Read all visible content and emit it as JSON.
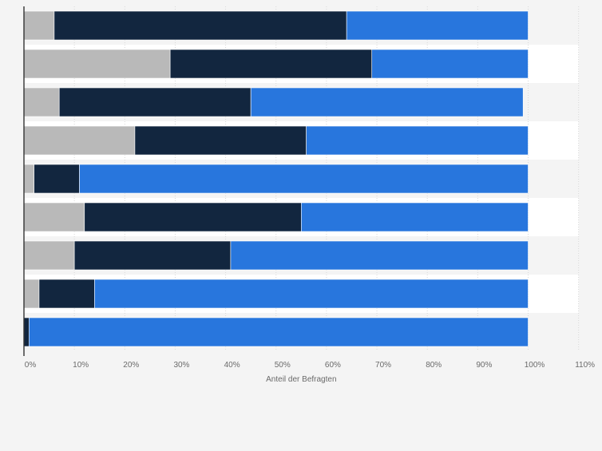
{
  "colors": {
    "series_1": "#b9b9b9",
    "series_2": "#12263f",
    "series_3": "#2876dd",
    "row_band_light": "#f4f4f4",
    "row_band_white": "#ffffff",
    "gridline": "#d9d9d9",
    "axis": "#333333",
    "tick_text": "#6a6a6a"
  },
  "chart_data": {
    "type": "bar",
    "orientation": "horizontal",
    "stacked": true,
    "xlabel": "Anteil der Befragten",
    "xlim": [
      0,
      110
    ],
    "x_ticks": [
      "0%",
      "10%",
      "20%",
      "30%",
      "40%",
      "50%",
      "60%",
      "70%",
      "80%",
      "90%",
      "100%",
      "110%"
    ],
    "grid": true,
    "legend": "none",
    "categories": [
      "",
      "",
      "",
      "",
      "",
      "",
      "",
      "",
      ""
    ],
    "series": [
      {
        "values": [
          6,
          29,
          7,
          22,
          2,
          12,
          10,
          3,
          0
        ]
      },
      {
        "values": [
          58,
          40,
          38,
          34,
          9,
          43,
          31,
          11,
          1
        ]
      },
      {
        "values": [
          36,
          31,
          54,
          44,
          89,
          45,
          59,
          86,
          99
        ]
      }
    ]
  }
}
